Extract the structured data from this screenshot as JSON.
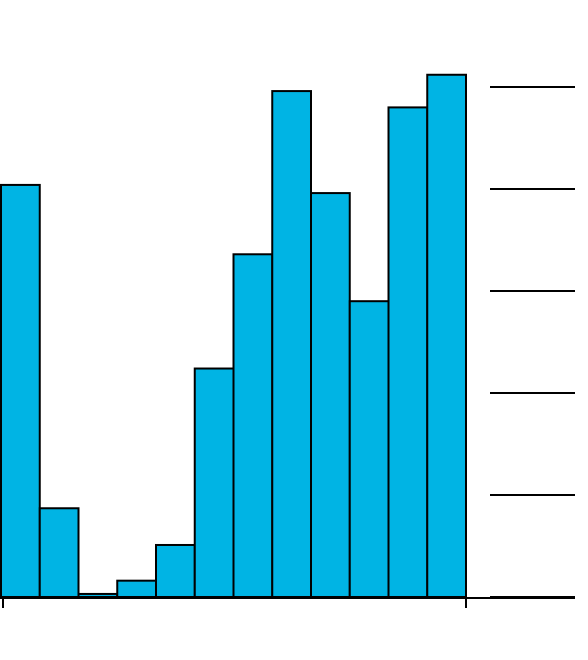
{
  "chart_data": {
    "type": "bar",
    "categories": [
      null,
      null,
      null,
      null,
      null,
      null,
      null,
      null,
      null,
      null,
      null,
      null
    ],
    "values": [
      4.04,
      0.87,
      0.03,
      0.16,
      0.51,
      2.24,
      3.36,
      4.96,
      3.96,
      2.9,
      4.8,
      5.12
    ],
    "color": "#00b4e4",
    "ylim": [
      0,
      5.5
    ],
    "yticks": [
      0,
      1,
      2,
      3,
      4,
      5
    ],
    "grid": true
  }
}
